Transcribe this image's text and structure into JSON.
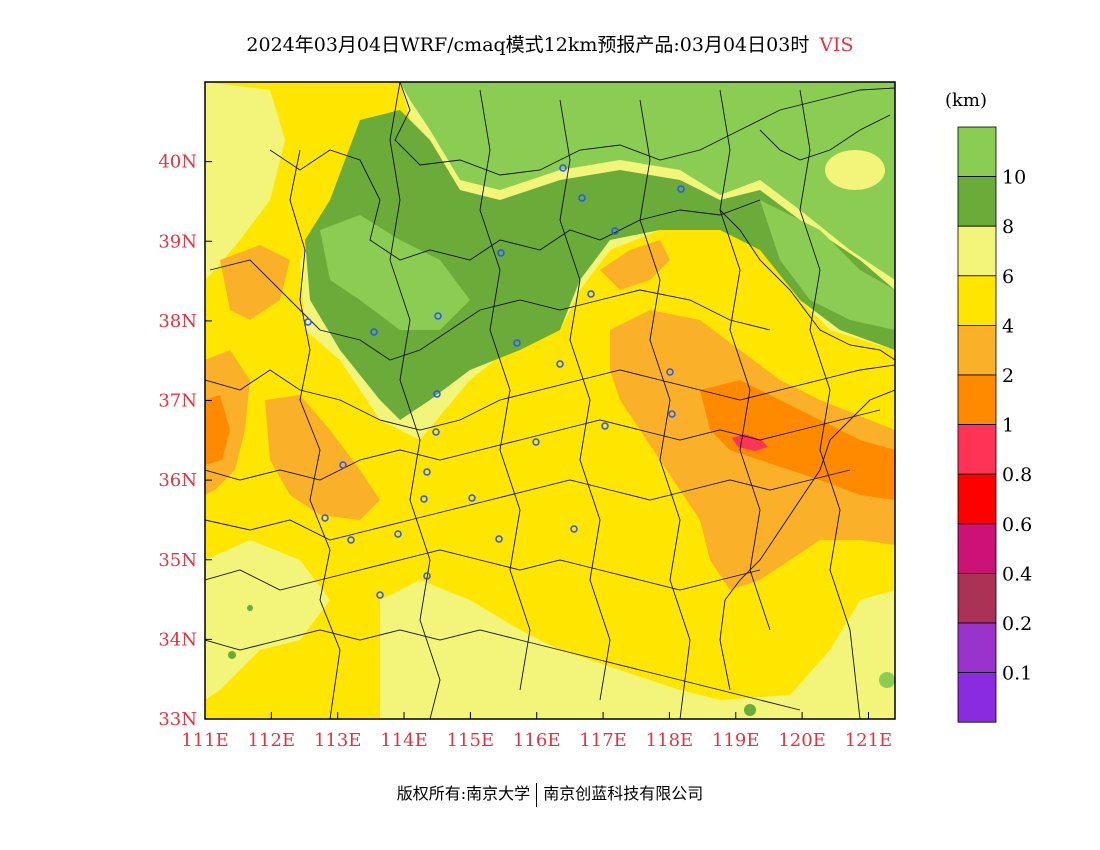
{
  "title": {
    "main": "2024年03月04日WRF/cmaq模式12km预报产品:03月04日03时",
    "variable": "VIS"
  },
  "map": {
    "lon_ticks": [
      "111E",
      "112E",
      "113E",
      "114E",
      "115E",
      "116E",
      "117E",
      "118E",
      "119E",
      "120E",
      "121E"
    ],
    "lat_ticks": [
      "33N",
      "34N",
      "35N",
      "36N",
      "37N",
      "38N",
      "39N",
      "40N"
    ],
    "lon_range": [
      111,
      121.4
    ],
    "lat_range": [
      33,
      41
    ]
  },
  "legend": {
    "unit": "(km)",
    "levels": [
      {
        "label": "",
        "color": "#8bcd52"
      },
      {
        "label": "10",
        "color": "#6aab3a"
      },
      {
        "label": "8",
        "color": "#f2f57a"
      },
      {
        "label": "6",
        "color": "#ffe600"
      },
      {
        "label": "4",
        "color": "#fbb02a"
      },
      {
        "label": "2",
        "color": "#ff8a00"
      },
      {
        "label": "1",
        "color": "#ff3355"
      },
      {
        "label": "0.8",
        "color": "#ff0000"
      },
      {
        "label": "0.6",
        "color": "#cc1177"
      },
      {
        "label": "0.4",
        "color": "#aa3355"
      },
      {
        "label": "0.2",
        "color": "#9933cc"
      },
      {
        "label": "0.1",
        "color": "#8a2be2"
      }
    ]
  },
  "footer": {
    "left": "版权所有:南京大学",
    "right": "南京创蓝科技有限公司"
  }
}
